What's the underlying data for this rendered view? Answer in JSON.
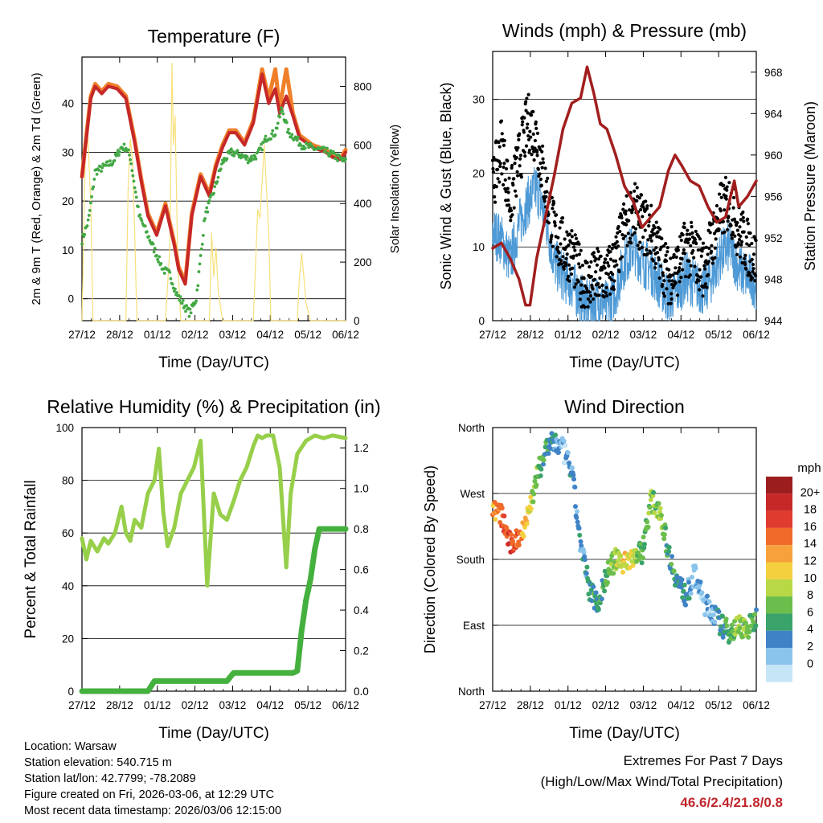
{
  "colors": {
    "temp_red": "#c62828",
    "temp_orange": "#f07f2a",
    "dewpoint_green": "#43a845",
    "solar_yellow": "#f7e07a",
    "wind_blue": "#4e9ad6",
    "gust_black": "#000000",
    "pressure_maroon": "#a21e1e",
    "rh_lightgreen": "#97cf4a",
    "precip_green": "#44b03d"
  },
  "chart_data": [
    {
      "id": "temperature",
      "type": "line",
      "title": "Temperature (F)",
      "xlabel": "Time (Day/UTC)",
      "ylabel_left": "2m & 9m T (Red, Orange) & 2m Td (Green)",
      "ylabel_right": "Solar Insolation (Yellow)",
      "x_ticks": [
        "27/12",
        "28/12",
        "01/12",
        "02/12",
        "03/12",
        "04/12",
        "05/12",
        "06/12"
      ],
      "ylim_left": [
        -4.5,
        49.5
      ],
      "yticks_left": [
        0,
        10,
        20,
        30,
        40
      ],
      "ylim_right": [
        0,
        900
      ],
      "yticks_right": [
        0,
        200,
        400,
        600,
        800
      ],
      "grid_left": [
        0,
        10,
        20,
        30,
        40
      ],
      "series": [
        {
          "name": "2m T",
          "color_key": "temp_red",
          "x": [
            0,
            0.1,
            0.2,
            0.3,
            0.45,
            0.6,
            0.8,
            1.0,
            1.2,
            1.35,
            1.5,
            1.7,
            1.9,
            2.1,
            2.2,
            2.35,
            2.5,
            2.7,
            2.9,
            3.05,
            3.2,
            3.35,
            3.5,
            3.7,
            3.9,
            4.1,
            4.25,
            4.4,
            4.5,
            4.65,
            4.8,
            4.95,
            5.1,
            5.25,
            5.4,
            5.55,
            5.7,
            5.9,
            6.0
          ],
          "values": [
            25,
            33,
            41,
            43.5,
            42,
            43.5,
            43,
            41,
            32,
            24,
            17,
            13,
            19,
            11,
            6,
            3,
            17,
            25,
            21,
            27,
            31,
            34,
            34,
            31.5,
            36,
            46,
            40,
            43,
            38,
            41.5,
            37.5,
            33,
            32,
            31,
            30.5,
            30,
            29,
            28.5,
            30
          ]
        },
        {
          "name": "9m T",
          "color_key": "temp_orange",
          "x": [
            0,
            0.1,
            0.2,
            0.3,
            0.45,
            0.6,
            0.8,
            1.0,
            1.2,
            1.35,
            1.5,
            1.7,
            1.9,
            2.1,
            2.2,
            2.35,
            2.5,
            2.7,
            2.9,
            3.05,
            3.2,
            3.35,
            3.5,
            3.7,
            3.9,
            4.1,
            4.25,
            4.4,
            4.5,
            4.65,
            4.8,
            4.95,
            5.1,
            5.25,
            5.4,
            5.55,
            5.7,
            5.9,
            6.0
          ],
          "values": [
            25,
            33.5,
            41.5,
            44,
            42.5,
            44,
            43.5,
            41.5,
            32.5,
            24.5,
            17.5,
            13.5,
            19.5,
            11.5,
            6.5,
            3.5,
            17.5,
            25.5,
            21.5,
            27.5,
            31.5,
            34.5,
            34.5,
            32,
            36.5,
            47,
            41,
            47,
            39,
            47,
            38,
            33.5,
            32.5,
            31.5,
            31,
            30.5,
            29.5,
            29,
            30.5
          ]
        },
        {
          "name": "2m Td",
          "color_key": "dewpoint_green",
          "x": [
            0,
            0.15,
            0.3,
            0.5,
            0.7,
            0.9,
            1.0,
            1.1,
            1.3,
            1.5,
            1.7,
            1.85,
            2.0,
            2.15,
            2.3,
            2.45,
            2.6,
            2.8,
            3.0,
            3.2,
            3.4,
            3.6,
            3.8,
            4.0,
            4.2,
            4.4,
            4.55,
            4.7,
            4.85,
            5.0,
            5.2,
            5.4,
            5.6,
            5.8,
            6.0
          ],
          "values": [
            12,
            16,
            26,
            27,
            28,
            31,
            31,
            29,
            17,
            13,
            9,
            6,
            5,
            1,
            -1,
            -3,
            0,
            17,
            22,
            28,
            30,
            29.5,
            28.5,
            29.5,
            33,
            34,
            39,
            34,
            33,
            31.5,
            31,
            30.5,
            30,
            29,
            28
          ]
        },
        {
          "name": "Solar Insolation",
          "color_key": "solar_yellow",
          "axis": "right",
          "x": [
            0,
            0.08,
            0.13,
            0.2,
            0.25,
            1.0,
            1.05,
            1.1,
            1.15,
            1.2,
            1.25,
            1.9,
            2.0,
            2.05,
            2.08,
            2.12,
            2.18,
            2.25,
            2.9,
            2.95,
            3.0,
            3.05,
            3.1,
            3.2,
            3.9,
            4.0,
            4.05,
            4.15,
            4.25,
            4.3,
            4.9,
            4.95,
            5.0,
            5.05,
            5.1,
            5.2,
            6.0
          ],
          "values": [
            0,
            600,
            650,
            400,
            0,
            0,
            450,
            620,
            550,
            300,
            0,
            0,
            250,
            880,
            600,
            700,
            200,
            0,
            0,
            300,
            150,
            250,
            100,
            0,
            0,
            380,
            350,
            600,
            300,
            0,
            0,
            150,
            230,
            150,
            60,
            0,
            0
          ]
        }
      ]
    },
    {
      "id": "winds",
      "type": "scatter",
      "title": "Winds (mph) & Pressure (mb)",
      "xlabel": "Time (Day/UTC)",
      "ylabel_left": "Sonic Wind & Gust (Blue, Black)",
      "ylabel_right": "Station Pressure (Maroon)",
      "x_ticks": [
        "27/12",
        "28/12",
        "01/12",
        "02/12",
        "03/12",
        "04/12",
        "05/12",
        "06/12"
      ],
      "ylim_left": [
        0,
        36.5
      ],
      "yticks_left": [
        0,
        10,
        20,
        30
      ],
      "ylim_right": [
        944,
        970
      ],
      "yticks_right": [
        944,
        948,
        952,
        956,
        960,
        964,
        968
      ],
      "grid_left": [
        10,
        20,
        30
      ],
      "series": [
        {
          "name": "Sonic Wind",
          "color_key": "wind_blue",
          "x": [
            0,
            0.2,
            0.4,
            0.6,
            0.8,
            1.0,
            1.2,
            1.4,
            1.6,
            1.8,
            2.0,
            2.2,
            2.4,
            2.6,
            2.8,
            3.0,
            3.2,
            3.4,
            3.6,
            3.8,
            4.0,
            4.2,
            4.4,
            4.6,
            4.8,
            5.0,
            5.2,
            5.4,
            5.6,
            5.8,
            6.0
          ],
          "values": [
            12,
            11,
            8,
            13,
            16,
            18,
            14,
            8,
            6,
            5,
            3,
            2,
            3,
            2,
            4,
            8,
            10,
            8,
            7,
            5,
            3,
            4,
            6,
            5,
            4,
            6,
            9,
            10,
            7,
            6,
            5
          ]
        },
        {
          "name": "Gust",
          "color_key": "gust_black",
          "x": [
            0,
            0.2,
            0.4,
            0.6,
            0.8,
            1.0,
            1.2,
            1.4,
            1.6,
            1.8,
            2.0,
            2.2,
            2.4,
            2.6,
            2.8,
            3.0,
            3.2,
            3.4,
            3.6,
            3.8,
            4.0,
            4.2,
            4.4,
            4.6,
            4.8,
            5.0,
            5.2,
            5.4,
            5.6,
            5.8,
            6.0
          ],
          "values": [
            18,
            24,
            16,
            22,
            27,
            25,
            18,
            12,
            10,
            9,
            6,
            5,
            6,
            6,
            8,
            13,
            15,
            13,
            12,
            9,
            6,
            7,
            10,
            9,
            7,
            11,
            15,
            16,
            12,
            10,
            8
          ]
        },
        {
          "name": "Station Pressure",
          "color_key": "pressure_maroon",
          "axis": "right",
          "type": "line",
          "x": [
            0,
            0.2,
            0.4,
            0.6,
            0.75,
            0.85,
            1.0,
            1.2,
            1.4,
            1.6,
            1.8,
            2.0,
            2.15,
            2.3,
            2.45,
            2.6,
            2.8,
            3.0,
            3.2,
            3.4,
            3.6,
            3.8,
            4.0,
            4.15,
            4.3,
            4.5,
            4.7,
            4.9,
            5.1,
            5.3,
            5.5,
            5.6,
            5.8,
            6.0
          ],
          "values": [
            951,
            951.5,
            950,
            948,
            945.5,
            945.5,
            950,
            954,
            958,
            962.5,
            965,
            965.5,
            968.5,
            966,
            963,
            962.5,
            960,
            957,
            955.5,
            953,
            954,
            955,
            958.5,
            960,
            959,
            957.5,
            957,
            955,
            953.5,
            954,
            957.5,
            955,
            956,
            957.5
          ]
        }
      ]
    },
    {
      "id": "humidity",
      "type": "line",
      "title": "Relative Humidity (%) & Precipitation (in)",
      "xlabel": "Time (Day/UTC)",
      "ylabel_left": "Percent & Total Rainfall",
      "x_ticks": [
        "27/12",
        "28/12",
        "01/12",
        "02/12",
        "03/12",
        "04/12",
        "05/12",
        "06/12"
      ],
      "ylim_left": [
        0,
        100
      ],
      "yticks_left": [
        0,
        20,
        40,
        60,
        80,
        100
      ],
      "ylim_right": [
        0,
        1.3
      ],
      "yticks_right": [
        0.0,
        0.2,
        0.4,
        0.6,
        0.8,
        1.0,
        1.2
      ],
      "grid_left": [
        20,
        40,
        60,
        80
      ],
      "series": [
        {
          "name": "Relative Humidity",
          "color_key": "rh_lightgreen",
          "x": [
            0,
            0.1,
            0.2,
            0.35,
            0.5,
            0.6,
            0.75,
            0.9,
            1.0,
            1.1,
            1.2,
            1.35,
            1.5,
            1.65,
            1.75,
            1.85,
            1.95,
            2.1,
            2.25,
            2.4,
            2.55,
            2.7,
            2.85,
            3.0,
            3.15,
            3.3,
            3.45,
            3.6,
            3.75,
            3.9,
            4.0,
            4.1,
            4.2,
            4.35,
            4.5,
            4.65,
            4.75,
            4.9,
            5.1,
            5.3,
            5.5,
            5.7,
            6.0
          ],
          "values": [
            58,
            50,
            57,
            53,
            58,
            56,
            60,
            70,
            60,
            57,
            65,
            62,
            75,
            80,
            92,
            68,
            55,
            62,
            75,
            80,
            85,
            95,
            40,
            75,
            67,
            65,
            72,
            80,
            85,
            93,
            97,
            96,
            97,
            97,
            85,
            47,
            75,
            90,
            95,
            97,
            96,
            97,
            96
          ]
        },
        {
          "name": "Total Rainfall",
          "color_key": "precip_green",
          "axis": "right",
          "x": [
            0,
            1.5,
            1.65,
            3.3,
            3.45,
            4.8,
            4.9,
            5.0,
            5.1,
            5.2,
            5.3,
            5.4,
            5.5,
            6.0
          ],
          "values": [
            0,
            0,
            0.05,
            0.05,
            0.09,
            0.09,
            0.1,
            0.3,
            0.45,
            0.55,
            0.7,
            0.8,
            0.8,
            0.8
          ]
        }
      ]
    },
    {
      "id": "wind_direction",
      "type": "scatter",
      "title": "Wind Direction",
      "xlabel": "Time (Day/UTC)",
      "ylabel_left": "Direction (Colored By Speed)",
      "x_ticks": [
        "27/12",
        "28/12",
        "01/12",
        "02/12",
        "03/12",
        "04/12",
        "05/12",
        "06/12"
      ],
      "y_tick_labels": [
        "North",
        "East",
        "South",
        "West",
        "North"
      ],
      "y_tick_degrees": [
        0,
        90,
        180,
        270,
        360
      ],
      "ylim_left": [
        0,
        360
      ],
      "grid_left": [
        90,
        180,
        270
      ],
      "series": [
        {
          "name": "Direction",
          "x": [
            0,
            0.2,
            0.4,
            0.6,
            0.8,
            1.0,
            1.2,
            1.4,
            1.6,
            1.8,
            2.0,
            2.2,
            2.4,
            2.6,
            2.8,
            3.0,
            3.2,
            3.4,
            3.6,
            3.8,
            4.0,
            4.2,
            4.4,
            4.6,
            4.8,
            5.0,
            5.2,
            5.4,
            5.6,
            5.8,
            6.0
          ],
          "values": [
            250,
            240,
            200,
            210,
            240,
            290,
            330,
            340,
            330,
            300,
            200,
            140,
            120,
            160,
            180,
            175,
            185,
            190,
            260,
            250,
            190,
            150,
            130,
            160,
            120,
            110,
            90,
            80,
            90,
            85,
            100
          ],
          "speeds": [
            14,
            16,
            18,
            16,
            12,
            8,
            6,
            4,
            2,
            4,
            3,
            5,
            6,
            7,
            10,
            12,
            10,
            6,
            8,
            9,
            6,
            5,
            4,
            3,
            2,
            3,
            5,
            7,
            9,
            8,
            6
          ]
        }
      ],
      "legend": {
        "title": "mph",
        "labels": [
          "20+",
          "18",
          "16",
          "14",
          "12",
          "10",
          "8",
          "6",
          "4",
          "2",
          "0"
        ],
        "colors": [
          "#9c1d1d",
          "#c62828",
          "#e03b2f",
          "#f06a2a",
          "#f7a13c",
          "#f4d03f",
          "#b9d846",
          "#6cbe4c",
          "#3aa36a",
          "#3f83c6",
          "#8ac4ec",
          "#c6e6f7"
        ]
      }
    }
  ],
  "footer": {
    "location": "Location: Warsaw",
    "elevation": "Station elevation: 540.715 m",
    "latlon": "Station lat/lon: 42.7799; -78.2089",
    "created": "Figure created on Fri, 2026-03-06, at 12:29 UTC",
    "timestamp": "Most recent data timestamp: 2026/03/06 12:15:00"
  },
  "extremes": {
    "title": "Extremes For Past 7 Days",
    "subtitle": "(High/Low/Max Wind/Total Precipitation)",
    "values": "46.6/2.4/21.8/0.8"
  }
}
